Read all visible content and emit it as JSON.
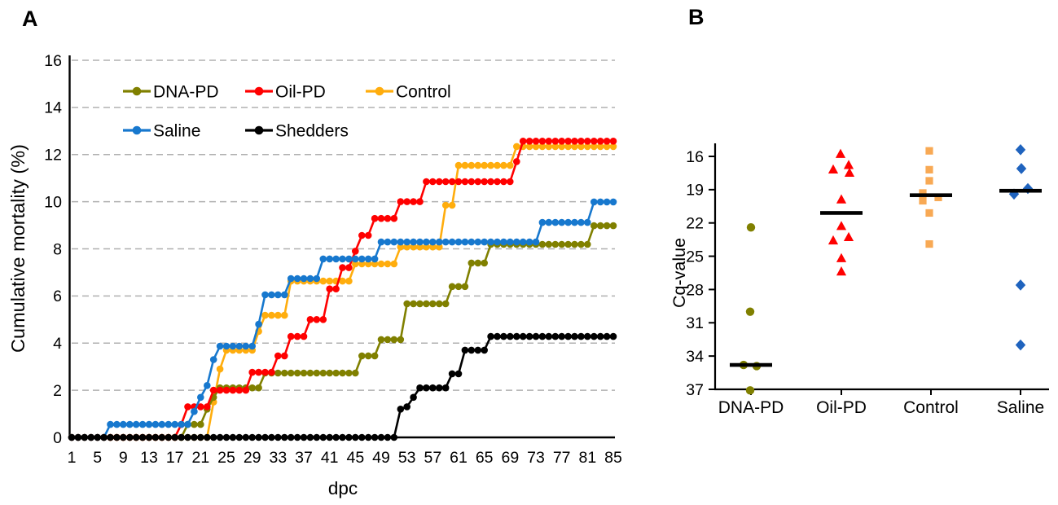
{
  "figure": {
    "panel_a_label": "A",
    "panel_b_label": "B"
  },
  "chart_data": [
    {
      "id": "A",
      "type": "line",
      "title": "",
      "xlabel": "dpc",
      "ylabel": "Cumulative mortality (%)",
      "xlim": [
        1,
        85
      ],
      "xticks": [
        1,
        5,
        9,
        13,
        17,
        21,
        25,
        29,
        33,
        37,
        41,
        45,
        49,
        53,
        57,
        61,
        65,
        69,
        73,
        77,
        81,
        85
      ],
      "ylim": [
        0,
        16
      ],
      "yticks": [
        0,
        2,
        4,
        6,
        8,
        10,
        12,
        14,
        16
      ],
      "grid": "horizontal-dashed",
      "grid_color": "#b0b0b0",
      "legend_position": "inside-top-left",
      "legend_rows": [
        [
          "DNA-PD",
          "Oil-PD",
          "Control"
        ],
        [
          "Saline",
          "Shedders"
        ]
      ],
      "series": [
        {
          "name": "DNA-PD",
          "color": "#808000",
          "marker": "circle",
          "steps": [
            [
              1,
              0
            ],
            [
              19,
              0.55
            ],
            [
              22,
              1.2
            ],
            [
              23,
              1.7
            ],
            [
              24,
              2.1
            ],
            [
              31,
              2.73
            ],
            [
              46,
              3.46
            ],
            [
              49,
              4.15
            ],
            [
              53,
              5.67
            ],
            [
              60,
              6.4
            ],
            [
              63,
              7.4
            ],
            [
              66,
              8.19
            ],
            [
              82,
              8.98
            ]
          ]
        },
        {
          "name": "Oil-PD",
          "color": "#ff0000",
          "marker": "circle",
          "steps": [
            [
              1,
              0
            ],
            [
              18,
              0.55
            ],
            [
              19,
              1.3
            ],
            [
              23,
              2.0
            ],
            [
              29,
              2.76
            ],
            [
              33,
              3.46
            ],
            [
              35,
              4.28
            ],
            [
              38,
              5.0
            ],
            [
              41,
              6.3
            ],
            [
              43,
              7.2
            ],
            [
              45,
              7.9
            ],
            [
              46,
              8.57
            ],
            [
              48,
              9.29
            ],
            [
              52,
              10.0
            ],
            [
              56,
              10.85
            ],
            [
              70,
              11.7
            ],
            [
              71,
              12.57
            ]
          ]
        },
        {
          "name": "Control",
          "color": "#ffad0d",
          "marker": "circle",
          "steps": [
            [
              1,
              0
            ],
            [
              23,
              1.5
            ],
            [
              24,
              2.9
            ],
            [
              25,
              3.7
            ],
            [
              30,
              4.5
            ],
            [
              31,
              5.18
            ],
            [
              35,
              6.63
            ],
            [
              45,
              7.36
            ],
            [
              52,
              8.08
            ],
            [
              59,
              9.85
            ],
            [
              61,
              11.54
            ],
            [
              70,
              12.34
            ]
          ]
        },
        {
          "name": "Saline",
          "color": "#1778ce",
          "marker": "circle",
          "steps": [
            [
              1,
              0
            ],
            [
              7,
              0.55
            ],
            [
              20,
              1.1
            ],
            [
              21,
              1.7
            ],
            [
              22,
              2.2
            ],
            [
              23,
              3.3
            ],
            [
              24,
              3.87
            ],
            [
              30,
              4.8
            ],
            [
              31,
              6.05
            ],
            [
              35,
              6.74
            ],
            [
              40,
              7.57
            ],
            [
              49,
              8.29
            ],
            [
              74,
              9.12
            ],
            [
              82,
              9.99
            ]
          ]
        },
        {
          "name": "Shedders",
          "color": "#000000",
          "marker": "circle",
          "steps": [
            [
              1,
              0
            ],
            [
              52,
              1.2
            ],
            [
              53,
              1.3
            ],
            [
              54,
              1.7
            ],
            [
              55,
              2.1
            ],
            [
              60,
              2.7
            ],
            [
              62,
              3.7
            ],
            [
              66,
              4.28
            ]
          ]
        }
      ]
    },
    {
      "id": "B",
      "type": "scatter",
      "title": "",
      "xlabel": "",
      "ylabel": "Cq-value",
      "y_reversed": true,
      "ylim": [
        16,
        37
      ],
      "yticks": [
        16,
        19,
        22,
        25,
        28,
        31,
        34,
        37
      ],
      "categories": [
        "DNA-PD",
        "Oil-PD",
        "Control",
        "Saline"
      ],
      "median_bar_color": "#000000",
      "groups": [
        {
          "name": "DNA-PD",
          "marker": "circle",
          "color": "#808000",
          "median": 34.8,
          "points": [
            {
              "cq": 22.4,
              "dx": 0
            },
            {
              "cq": 30.0,
              "dx": -1
            },
            {
              "cq": 34.8,
              "dx": -9
            },
            {
              "cq": 34.9,
              "dx": 7
            },
            {
              "cq": 37.1,
              "dx": -1
            }
          ]
        },
        {
          "name": "Oil-PD",
          "marker": "triangle",
          "color": "#ff0000",
          "median": 21.1,
          "points": [
            {
              "cq": 15.8,
              "dx": -1
            },
            {
              "cq": 16.8,
              "dx": 9
            },
            {
              "cq": 17.2,
              "dx": -10
            },
            {
              "cq": 17.5,
              "dx": 10
            },
            {
              "cq": 19.9,
              "dx": 0
            },
            {
              "cq": 22.3,
              "dx": 0
            },
            {
              "cq": 23.3,
              "dx": 9
            },
            {
              "cq": 23.6,
              "dx": -10
            },
            {
              "cq": 25.2,
              "dx": 0
            },
            {
              "cq": 26.4,
              "dx": 0
            }
          ]
        },
        {
          "name": "Control",
          "marker": "square",
          "color": "#f8a954",
          "median": 19.5,
          "points": [
            {
              "cq": 15.5,
              "dx": -2
            },
            {
              "cq": 17.2,
              "dx": -2
            },
            {
              "cq": 18.2,
              "dx": -2
            },
            {
              "cq": 19.3,
              "dx": -10
            },
            {
              "cq": 19.7,
              "dx": 9
            },
            {
              "cq": 20.0,
              "dx": -10
            },
            {
              "cq": 21.1,
              "dx": -2
            },
            {
              "cq": 23.9,
              "dx": -2
            }
          ]
        },
        {
          "name": "Saline",
          "marker": "diamond",
          "color": "#1f63be",
          "median": 19.1,
          "points": [
            {
              "cq": 15.4,
              "dx": 0
            },
            {
              "cq": 17.1,
              "dx": 1
            },
            {
              "cq": 18.9,
              "dx": 9
            },
            {
              "cq": 19.4,
              "dx": -8
            },
            {
              "cq": 27.6,
              "dx": 0
            },
            {
              "cq": 33.0,
              "dx": 0
            }
          ]
        }
      ]
    }
  ]
}
